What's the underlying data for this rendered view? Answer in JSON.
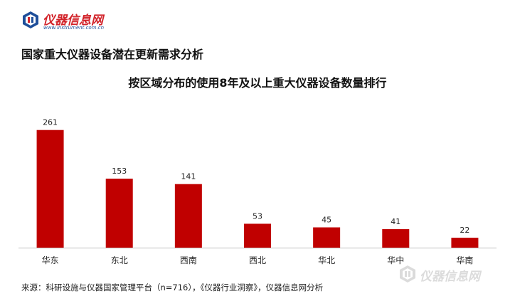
{
  "brand": {
    "name": "仪器信息网",
    "url": "www.instrument.com.cn"
  },
  "section_title": "国家重大仪器设备潜在更新需求分析",
  "source_note": "来源：科研设施与仪器国家管理平台（n=716），《仪器行业洞察》，仪器信息网分析",
  "watermark_text": "仪器信息网",
  "colors": {
    "bar": "#c00000",
    "brand_red": "#d2232a",
    "brand_blue": "#1f4f9a"
  },
  "chart_data": {
    "type": "bar",
    "title": "按区域分布的使用8年及以上重大仪器设备数量排行",
    "categories": [
      "华东",
      "东北",
      "西南",
      "西北",
      "华北",
      "华中",
      "华南"
    ],
    "values": [
      261,
      153,
      141,
      53,
      45,
      41,
      22
    ],
    "xlabel": "",
    "ylabel": "",
    "ylim": [
      0,
      300
    ],
    "grid": false,
    "show_data_labels": true,
    "show_y_axis": false
  }
}
